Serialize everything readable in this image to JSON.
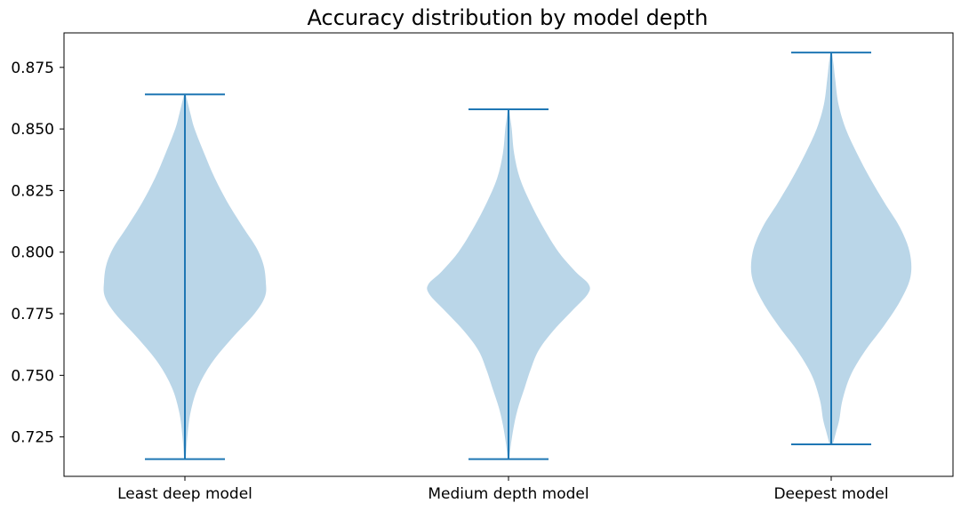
{
  "chart_data": {
    "type": "violin",
    "title": "Accuracy distribution by model depth",
    "xlabel": "",
    "ylabel": "",
    "categories": [
      "Least deep model",
      "Medium depth model",
      "Deepest model"
    ],
    "ylim": [
      0.709,
      0.889
    ],
    "yticks": [
      0.725,
      0.75,
      0.775,
      0.8,
      0.825,
      0.85,
      0.875
    ],
    "ytick_labels": [
      "0.725",
      "0.750",
      "0.775",
      "0.800",
      "0.825",
      "0.850",
      "0.875"
    ],
    "grid": false,
    "legend": "none",
    "colors": {
      "body": "#bad6e8",
      "lines": "#1f77b4"
    },
    "violins": [
      {
        "name": "Least deep model",
        "min": 0.716,
        "max": 0.864,
        "density": [
          [
            0.716,
            0.01
          ],
          [
            0.725,
            0.03
          ],
          [
            0.735,
            0.07
          ],
          [
            0.745,
            0.16
          ],
          [
            0.755,
            0.33
          ],
          [
            0.765,
            0.58
          ],
          [
            0.775,
            0.86
          ],
          [
            0.782,
            0.99
          ],
          [
            0.788,
            1.0
          ],
          [
            0.795,
            0.97
          ],
          [
            0.802,
            0.88
          ],
          [
            0.81,
            0.72
          ],
          [
            0.82,
            0.53
          ],
          [
            0.83,
            0.37
          ],
          [
            0.84,
            0.24
          ],
          [
            0.85,
            0.12
          ],
          [
            0.856,
            0.07
          ],
          [
            0.86,
            0.04
          ],
          [
            0.864,
            0.01
          ]
        ]
      },
      {
        "name": "Medium depth model",
        "min": 0.716,
        "max": 0.858,
        "density": [
          [
            0.716,
            0.01
          ],
          [
            0.722,
            0.03
          ],
          [
            0.73,
            0.07
          ],
          [
            0.737,
            0.12
          ],
          [
            0.745,
            0.2
          ],
          [
            0.752,
            0.27
          ],
          [
            0.76,
            0.37
          ],
          [
            0.768,
            0.55
          ],
          [
            0.776,
            0.78
          ],
          [
            0.783,
            0.98
          ],
          [
            0.787,
            0.99
          ],
          [
            0.792,
            0.83
          ],
          [
            0.8,
            0.62
          ],
          [
            0.81,
            0.43
          ],
          [
            0.82,
            0.27
          ],
          [
            0.83,
            0.14
          ],
          [
            0.84,
            0.07
          ],
          [
            0.85,
            0.04
          ],
          [
            0.855,
            0.02
          ],
          [
            0.858,
            0.01
          ]
        ]
      },
      {
        "name": "Deepest model",
        "min": 0.722,
        "max": 0.881,
        "density": [
          [
            0.722,
            0.02
          ],
          [
            0.727,
            0.06
          ],
          [
            0.732,
            0.1
          ],
          [
            0.74,
            0.14
          ],
          [
            0.75,
            0.24
          ],
          [
            0.76,
            0.42
          ],
          [
            0.77,
            0.65
          ],
          [
            0.78,
            0.85
          ],
          [
            0.79,
            0.98
          ],
          [
            0.8,
            0.97
          ],
          [
            0.81,
            0.85
          ],
          [
            0.82,
            0.66
          ],
          [
            0.83,
            0.48
          ],
          [
            0.84,
            0.32
          ],
          [
            0.85,
            0.18
          ],
          [
            0.86,
            0.09
          ],
          [
            0.87,
            0.05
          ],
          [
            0.876,
            0.03
          ],
          [
            0.881,
            0.01
          ]
        ]
      }
    ]
  }
}
